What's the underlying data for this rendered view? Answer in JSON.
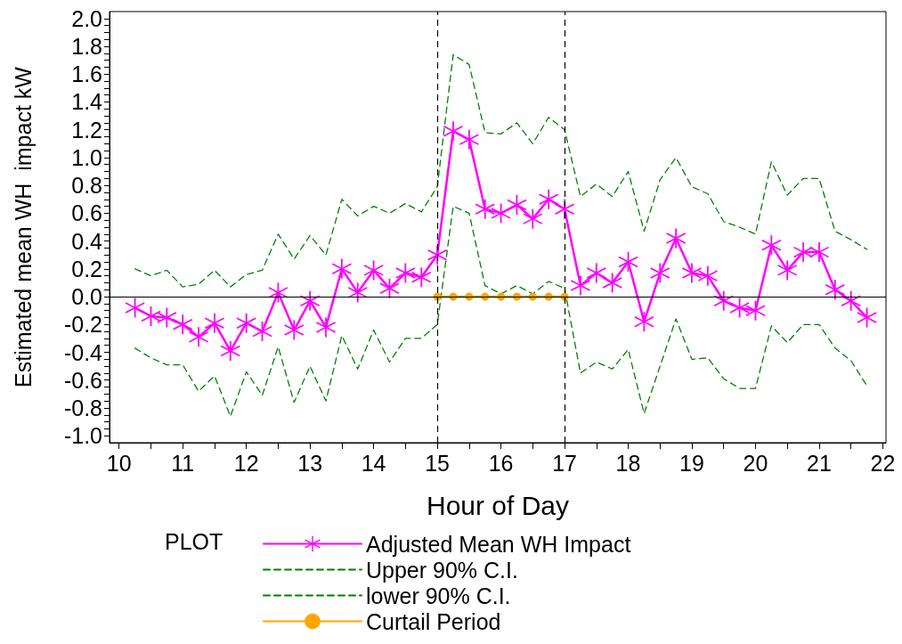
{
  "chart_data": {
    "type": "line",
    "xlabel": "Hour of Day",
    "ylabel": "Estimated mean WH  impact kW",
    "legend_title": "PLOT",
    "legend": "bottom",
    "grid": false,
    "x": [
      10.25,
      10.5,
      10.75,
      11,
      11.25,
      11.5,
      11.75,
      12,
      12.25,
      12.5,
      12.75,
      13,
      13.25,
      13.5,
      13.75,
      14,
      14.25,
      14.5,
      14.75,
      15,
      15.25,
      15.5,
      15.75,
      16,
      16.25,
      16.5,
      16.75,
      17,
      17.25,
      17.5,
      17.75,
      18,
      18.25,
      18.5,
      18.75,
      19,
      19.25,
      19.5,
      19.75,
      20,
      20.25,
      20.5,
      20.75,
      21,
      21.25,
      21.5,
      21.75
    ],
    "xlim": [
      9.85,
      22.05
    ],
    "xticks": [
      10,
      {
        "value": 10.5,
        "label": null
      },
      11,
      {
        "value": 11.5,
        "label": null
      },
      12,
      {
        "value": 12.5,
        "label": null
      },
      13,
      {
        "value": 13.5,
        "label": null
      },
      14,
      {
        "value": 14.5,
        "label": null
      },
      15,
      {
        "value": 15.5,
        "label": null
      },
      16,
      {
        "value": 16.5,
        "label": null
      },
      17,
      {
        "value": 17.5,
        "label": null
      },
      18,
      {
        "value": 18.5,
        "label": null
      },
      19,
      {
        "value": 19.5,
        "label": null
      },
      20,
      {
        "value": 20.5,
        "label": null
      },
      21,
      {
        "value": 21.5,
        "label": null
      },
      22
    ],
    "ylim": [
      -1.05,
      2.05
    ],
    "yticks": [
      {
        "value": -1,
        "label": "-1.0"
      },
      {
        "value": -0.8,
        "label": "-0.8"
      },
      {
        "value": -0.6,
        "label": "-0.6"
      },
      {
        "value": -0.4,
        "label": "-0.4"
      },
      {
        "value": -0.2,
        "label": "-0.2"
      },
      {
        "value": 0,
        "label": "0.0"
      },
      {
        "value": 0.2,
        "label": "0.2"
      },
      {
        "value": 0.4,
        "label": "0.4"
      },
      {
        "value": 0.6,
        "label": "0.6"
      },
      {
        "value": 0.8,
        "label": "0.8"
      },
      {
        "value": 1,
        "label": "1.0"
      },
      {
        "value": 1.2,
        "label": "1.2"
      },
      {
        "value": 1.4,
        "label": "1.4"
      },
      {
        "value": 1.6,
        "label": "1.6"
      },
      {
        "value": 1.8,
        "label": "1.8"
      },
      {
        "value": 2,
        "label": "2.0"
      },
      {
        "value": -0.95,
        "label": null
      },
      {
        "value": -0.9,
        "label": null
      },
      {
        "value": -0.85,
        "label": null
      },
      {
        "value": -0.75,
        "label": null
      },
      {
        "value": -0.7,
        "label": null
      },
      {
        "value": -0.65,
        "label": null
      },
      {
        "value": -0.55,
        "label": null
      },
      {
        "value": -0.5,
        "label": null
      },
      {
        "value": -0.45,
        "label": null
      },
      {
        "value": -0.35,
        "label": null
      },
      {
        "value": -0.3,
        "label": null
      },
      {
        "value": -0.25,
        "label": null
      },
      {
        "value": -0.15,
        "label": null
      },
      {
        "value": -0.1,
        "label": null
      },
      {
        "value": -0.05,
        "label": null
      },
      {
        "value": 0.05,
        "label": null
      },
      {
        "value": 0.1,
        "label": null
      },
      {
        "value": 0.15,
        "label": null
      },
      {
        "value": 0.25,
        "label": null
      },
      {
        "value": 0.3,
        "label": null
      },
      {
        "value": 0.35,
        "label": null
      },
      {
        "value": 0.45,
        "label": null
      },
      {
        "value": 0.5,
        "label": null
      },
      {
        "value": 0.55,
        "label": null
      },
      {
        "value": 0.65,
        "label": null
      },
      {
        "value": 0.7,
        "label": null
      },
      {
        "value": 0.75,
        "label": null
      },
      {
        "value": 0.85,
        "label": null
      },
      {
        "value": 0.9,
        "label": null
      },
      {
        "value": 0.95,
        "label": null
      },
      {
        "value": 1.05,
        "label": null
      },
      {
        "value": 1.1,
        "label": null
      },
      {
        "value": 1.15,
        "label": null
      },
      {
        "value": 1.25,
        "label": null
      },
      {
        "value": 1.3,
        "label": null
      },
      {
        "value": 1.35,
        "label": null
      },
      {
        "value": 1.45,
        "label": null
      },
      {
        "value": 1.5,
        "label": null
      },
      {
        "value": 1.55,
        "label": null
      },
      {
        "value": 1.65,
        "label": null
      },
      {
        "value": 1.7,
        "label": null
      },
      {
        "value": 1.75,
        "label": null
      },
      {
        "value": 1.85,
        "label": null
      },
      {
        "value": 1.9,
        "label": null
      },
      {
        "value": 1.95,
        "label": null
      }
    ],
    "ref_lines": [
      {
        "axis": "y",
        "value": 0,
        "label": null,
        "color": "#000000",
        "line_style": "solid"
      },
      {
        "axis": "x",
        "value": 15,
        "label": null,
        "color": "#000000",
        "line_style": "dashed"
      },
      {
        "axis": "x",
        "value": 17,
        "label": null,
        "color": "#000000",
        "line_style": "dashed"
      }
    ],
    "series": [
      {
        "name": "Adjusted Mean WH Impact",
        "color": "#ff00ff",
        "marker": "cross",
        "line_style": "solid",
        "values": [
          -0.08,
          -0.14,
          -0.15,
          -0.2,
          -0.29,
          -0.19,
          -0.39,
          -0.19,
          -0.25,
          0.03,
          -0.24,
          -0.03,
          -0.22,
          0.2,
          0.03,
          0.19,
          0.06,
          0.17,
          0.14,
          0.3,
          1.19,
          1.13,
          0.63,
          0.6,
          0.66,
          0.56,
          0.7,
          0.63,
          0.08,
          0.17,
          0.1,
          0.25,
          -0.18,
          0.17,
          0.42,
          0.17,
          0.15,
          -0.03,
          -0.08,
          -0.1,
          0.37,
          0.19,
          0.32,
          0.32,
          0.05,
          -0.03,
          -0.15
        ]
      },
      {
        "name": "Upper 90% C.I.",
        "color": "#008000",
        "marker": "none",
        "line_style": "dashed",
        "values": [
          0.2,
          0.15,
          0.19,
          0.07,
          0.09,
          0.19,
          0.07,
          0.16,
          0.19,
          0.45,
          0.27,
          0.44,
          0.3,
          0.7,
          0.58,
          0.65,
          0.6,
          0.67,
          0.61,
          0.79,
          1.74,
          1.67,
          1.18,
          1.17,
          1.25,
          1.1,
          1.29,
          1.2,
          0.72,
          0.81,
          0.72,
          0.9,
          0.47,
          0.84,
          1.0,
          0.79,
          0.74,
          0.54,
          0.5,
          0.45,
          0.97,
          0.73,
          0.85,
          0.85,
          0.47,
          0.41,
          0.34
        ]
      },
      {
        "name": "lower 90% C.I.",
        "color": "#008000",
        "marker": "none",
        "line_style": "dashed",
        "values": [
          -0.37,
          -0.44,
          -0.49,
          -0.49,
          -0.68,
          -0.57,
          -0.86,
          -0.54,
          -0.71,
          -0.36,
          -0.76,
          -0.5,
          -0.75,
          -0.28,
          -0.52,
          -0.24,
          -0.47,
          -0.3,
          -0.3,
          -0.2,
          0.65,
          0.6,
          0.08,
          0.02,
          0.08,
          0.02,
          0.11,
          0.06,
          -0.55,
          -0.47,
          -0.52,
          -0.38,
          -0.84,
          -0.5,
          -0.16,
          -0.45,
          -0.44,
          -0.59,
          -0.66,
          -0.66,
          -0.21,
          -0.33,
          -0.2,
          -0.2,
          -0.37,
          -0.46,
          -0.64
        ]
      },
      {
        "name": "Curtail Period",
        "color": "#ffa500",
        "marker": "circle",
        "line_style": "solid",
        "x": [
          15,
          15.25,
          15.5,
          15.75,
          16,
          16.25,
          16.5,
          16.75,
          17
        ],
        "values": [
          0,
          0,
          0,
          0,
          0,
          0,
          0,
          0,
          0
        ]
      }
    ]
  }
}
